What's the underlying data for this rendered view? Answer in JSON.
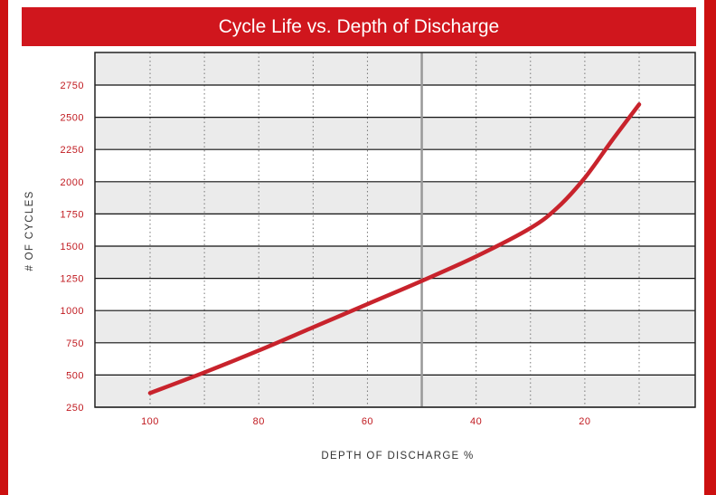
{
  "chart_data": {
    "type": "line",
    "title": "Cycle Life vs. Depth of Discharge",
    "xlabel": "DEPTH OF DISCHARGE %",
    "ylabel": "# OF CYCLES",
    "x_reversed": true,
    "xlim": [
      110,
      0
    ],
    "ylim": [
      250,
      2900
    ],
    "xticks": [
      "100",
      "80",
      "60",
      "40",
      "20"
    ],
    "xtick_values": [
      100,
      80,
      60,
      40,
      20
    ],
    "yticks": [
      "250",
      "500",
      "750",
      "1000",
      "1250",
      "1500",
      "1750",
      "2000",
      "2250",
      "2500",
      "2750"
    ],
    "ytick_values": [
      250,
      500,
      750,
      1000,
      1250,
      1500,
      1750,
      2000,
      2250,
      2500,
      2750
    ],
    "grid": true,
    "series": [
      {
        "x": [
          100,
          90,
          80,
          70,
          60,
          50,
          40,
          30,
          25,
          20,
          15,
          10
        ],
        "y": [
          360,
          520,
          690,
          870,
          1050,
          1230,
          1420,
          1640,
          1800,
          2030,
          2320,
          2600
        ]
      }
    ],
    "reference_line_x": 50,
    "colors": {
      "frame": "#cc1010",
      "title_bar": "#d0161d",
      "line": "#c8232c",
      "band": "#ebebeb",
      "grid": "#111111",
      "tick_labels": "#c0191f",
      "reference_line": "#999999"
    }
  }
}
